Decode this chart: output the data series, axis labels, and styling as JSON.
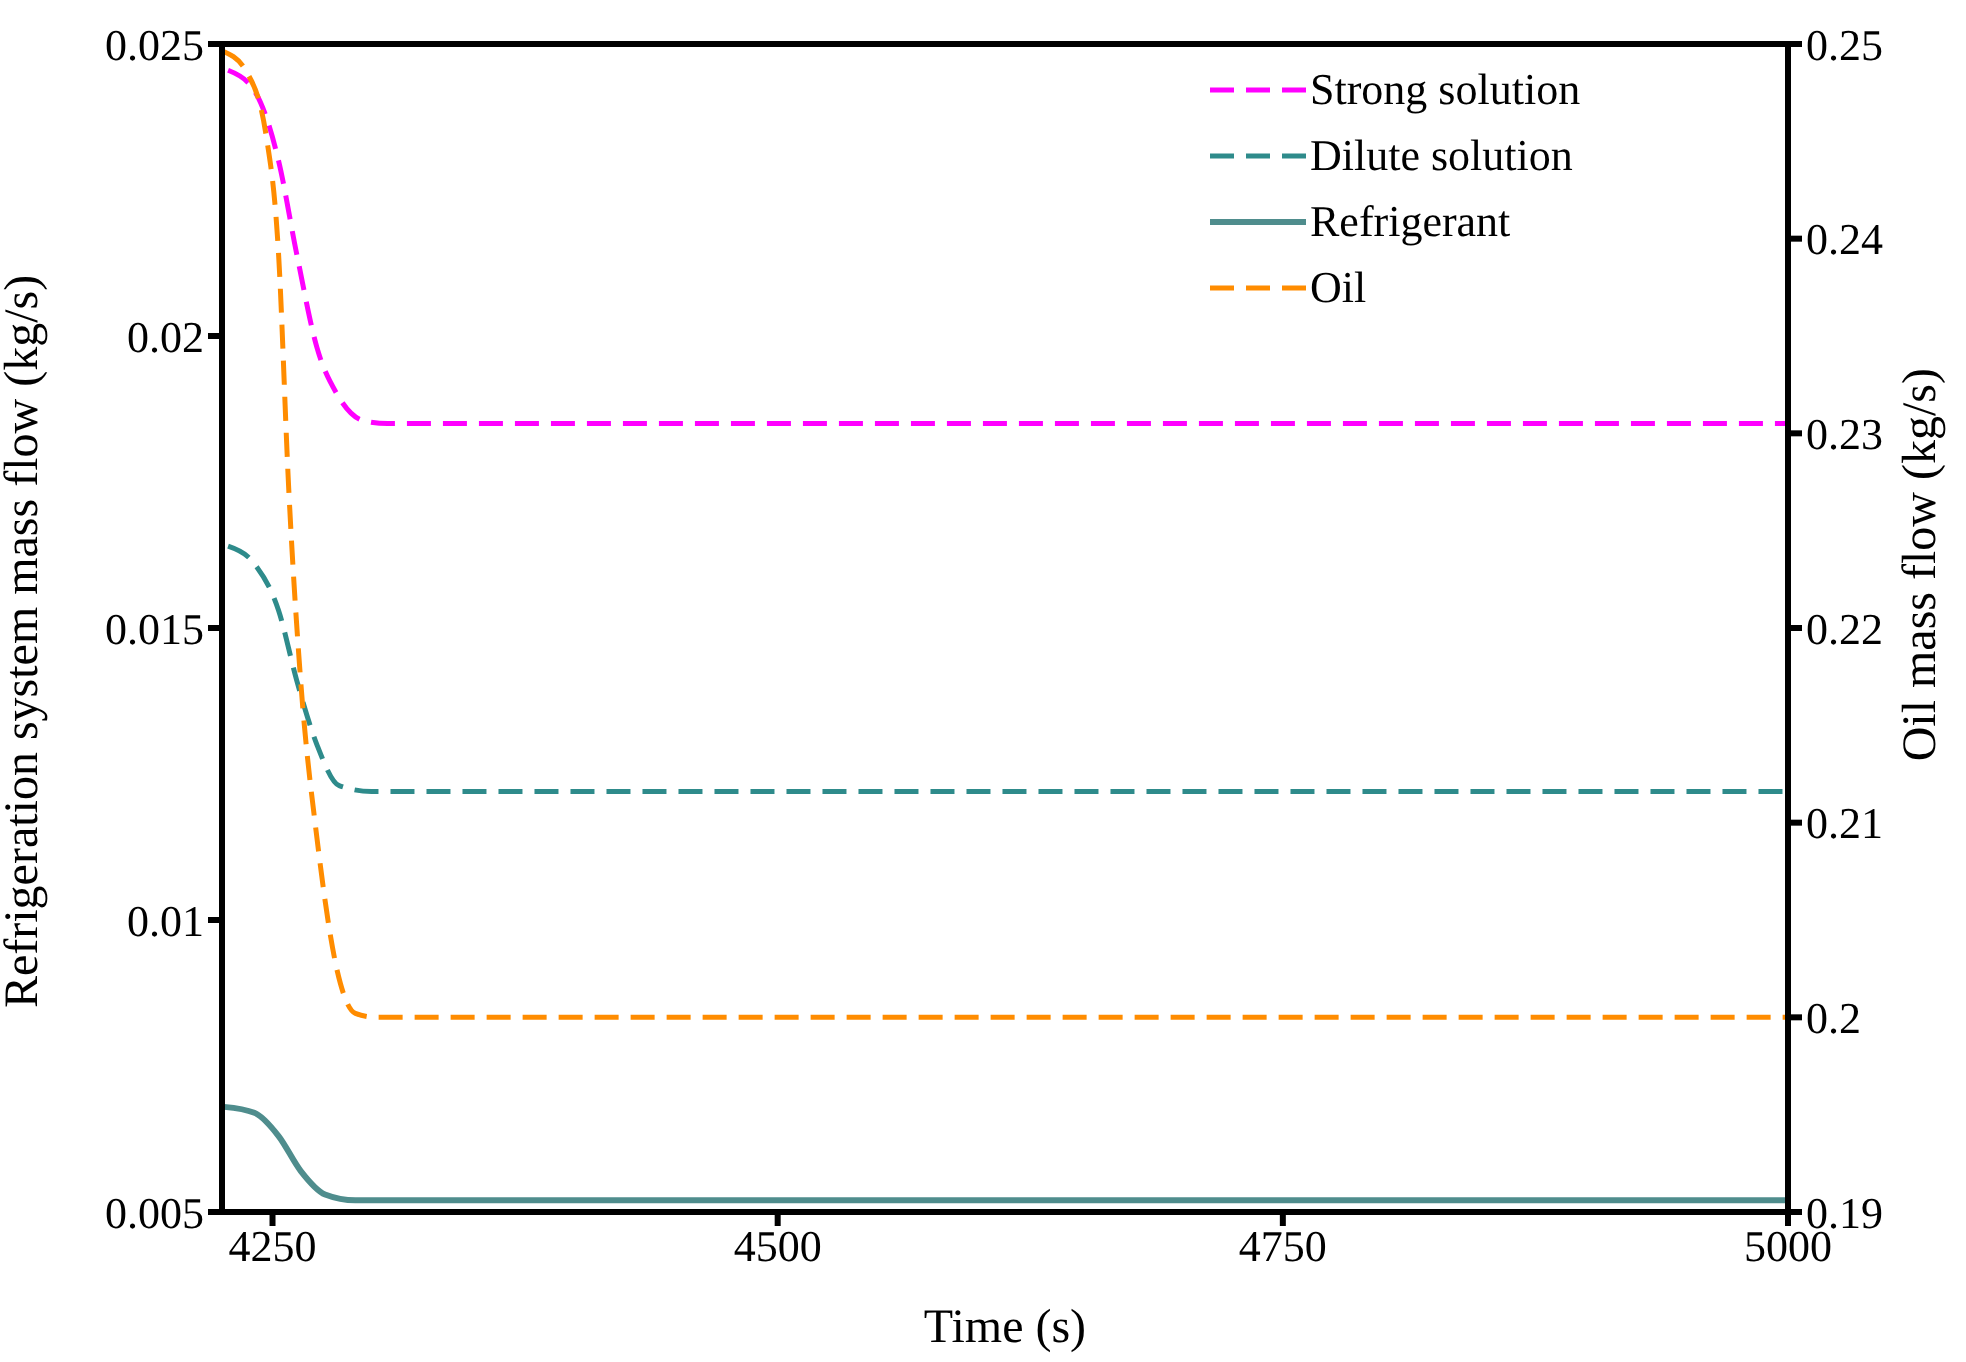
{
  "chart_data": {
    "type": "line",
    "xlabel": "Time (s)",
    "ylabel": "Refrigeration system mass flow (kg/s)",
    "y2label": "Oil mass flow (kg/s)",
    "xlim": [
      4225,
      5000
    ],
    "xticks": [
      4250,
      4500,
      4750,
      5000
    ],
    "ylim": [
      0.005,
      0.025
    ],
    "yticks": [
      0.005,
      0.01,
      0.015,
      0.02,
      0.025
    ],
    "y2lim": [
      0.19,
      0.25
    ],
    "y2ticks": [
      0.19,
      0.2,
      0.21,
      0.22,
      0.23,
      0.24,
      0.25
    ],
    "legend": "top right",
    "grid": false,
    "marker": "none",
    "series": [
      {
        "name": "Strong solution",
        "color": "#ff00ff",
        "line_style": "dashed",
        "x": [
          4228,
          4241,
          4253,
          4262,
          4272,
          4282,
          4295,
          4307,
          5000
        ],
        "values": [
          0.02455,
          0.0242,
          0.023,
          0.0214,
          0.0198,
          0.019,
          0.01855,
          0.0185,
          0.0185
        ]
      },
      {
        "name": "Dilute solution",
        "color": "#2e8b8b",
        "line_style": "dashed",
        "x": [
          4228,
          4241,
          4253,
          4262,
          4272,
          4283,
          4299,
          5000
        ],
        "values": [
          0.0164,
          0.0161,
          0.0153,
          0.0141,
          0.013,
          0.0123,
          0.0122,
          0.0122
        ]
      },
      {
        "name": "Refrigerant",
        "color": "#4f8d8d",
        "line_style": "solid",
        "x": [
          4226,
          4241,
          4253,
          4264,
          4276,
          4291,
          4305,
          5000
        ],
        "values": [
          0.0068,
          0.0067,
          0.0063,
          0.0057,
          0.0053,
          0.0052,
          0.0052,
          0.0052
        ]
      },
      {
        "name": "Oil",
        "color": "#ff8c00",
        "line_style": "dashed",
        "axis": "y2",
        "x": [
          4226,
          4237,
          4247,
          4253,
          4258,
          4264,
          4272,
          4282,
          4291,
          4301,
          5000
        ],
        "values": [
          0.2496,
          0.2486,
          0.2452,
          0.2392,
          0.2272,
          0.2172,
          0.2092,
          0.2024,
          0.2002,
          0.2,
          0.2
        ]
      }
    ]
  }
}
